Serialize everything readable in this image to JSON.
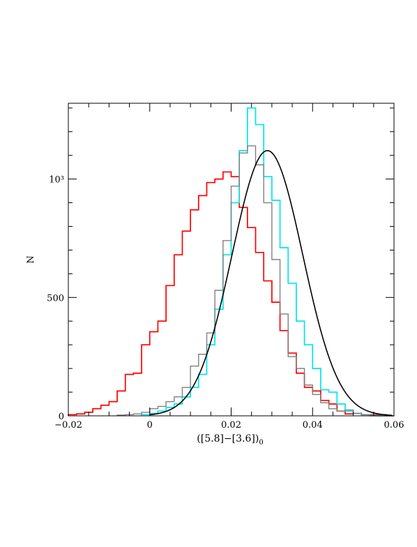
{
  "chart_data": {
    "type": "histogram",
    "title": "",
    "xlabel_main": "([5.8]−[3.6])",
    "xlabel_sub": "0",
    "ylabel": "N",
    "xlim": [
      -0.02,
      0.06
    ],
    "ylim": [
      0,
      1320
    ],
    "x_ticks": [
      {
        "value": -0.02,
        "label": "−0.02"
      },
      {
        "value": 0,
        "label": "0"
      },
      {
        "value": 0.02,
        "label": "0.02"
      },
      {
        "value": 0.04,
        "label": "0.04"
      },
      {
        "value": 0.06,
        "label": "0.06"
      }
    ],
    "y_ticks": [
      {
        "value": 0,
        "label": "0"
      },
      {
        "value": 500,
        "label": "500"
      },
      {
        "value": 1000,
        "label": "10³"
      }
    ],
    "series": [
      {
        "color": "#ff0000",
        "edges": [
          -0.02,
          -0.018,
          -0.016,
          -0.014,
          -0.012,
          -0.01,
          -0.008,
          -0.006,
          -0.004,
          -0.002,
          0,
          0.002,
          0.004,
          0.006,
          0.008,
          0.01,
          0.012,
          0.014,
          0.016,
          0.018,
          0.02,
          0.022,
          0.024,
          0.026,
          0.028,
          0.03,
          0.032,
          0.034,
          0.036,
          0.038,
          0.04,
          0.042,
          0.044,
          0.046,
          0.048,
          0.05,
          0.052,
          0.054,
          0.056,
          0.058,
          0.06
        ],
        "counts": [
          5,
          8,
          15,
          30,
          45,
          60,
          105,
          175,
          180,
          300,
          355,
          400,
          550,
          680,
          780,
          870,
          930,
          985,
          1000,
          1030,
          1010,
          880,
          795,
          690,
          570,
          480,
          360,
          265,
          180,
          120,
          105,
          65,
          50,
          20,
          8,
          10,
          5,
          5,
          5,
          0
        ]
      },
      {
        "color": "#00e5ee",
        "edges": [
          -0.002,
          0,
          0.002,
          0.004,
          0.006,
          0.008,
          0.01,
          0.012,
          0.014,
          0.016,
          0.018,
          0.02,
          0.022,
          0.024,
          0.026,
          0.028,
          0.03,
          0.032,
          0.034,
          0.036,
          0.038,
          0.04,
          0.042,
          0.044,
          0.046,
          0.048,
          0.05,
          0.052,
          0.054,
          0.056,
          0.058
        ],
        "counts": [
          5,
          10,
          20,
          35,
          50,
          80,
          120,
          175,
          300,
          450,
          680,
          900,
          1120,
          1300,
          1230,
          1010,
          910,
          710,
          560,
          400,
          300,
          200,
          110,
          100,
          50,
          20,
          10,
          5,
          2,
          0
        ]
      },
      {
        "color": "#808080",
        "edges": [
          -0.008,
          -0.006,
          -0.004,
          -0.002,
          0,
          0.002,
          0.004,
          0.006,
          0.008,
          0.01,
          0.012,
          0.014,
          0.016,
          0.018,
          0.02,
          0.022,
          0.024,
          0.026,
          0.028,
          0.03,
          0.032,
          0.034,
          0.036,
          0.038,
          0.04,
          0.042,
          0.044,
          0.046,
          0.048,
          0.05,
          0.052,
          0.054,
          0.056,
          0.058,
          0.06
        ],
        "counts": [
          3,
          5,
          8,
          15,
          30,
          40,
          60,
          80,
          120,
          210,
          260,
          350,
          530,
          740,
          970,
          1110,
          1140,
          1060,
          900,
          660,
          430,
          250,
          200,
          130,
          90,
          55,
          30,
          20,
          25,
          10,
          5,
          0,
          0,
          0,
          0
        ]
      }
    ],
    "fit_curve": {
      "type": "gaussian",
      "color": "#000000",
      "amplitude": 1120,
      "mean": 0.0289,
      "sigma": 0.0087,
      "x_range": [
        0.0,
        0.0595
      ]
    }
  }
}
